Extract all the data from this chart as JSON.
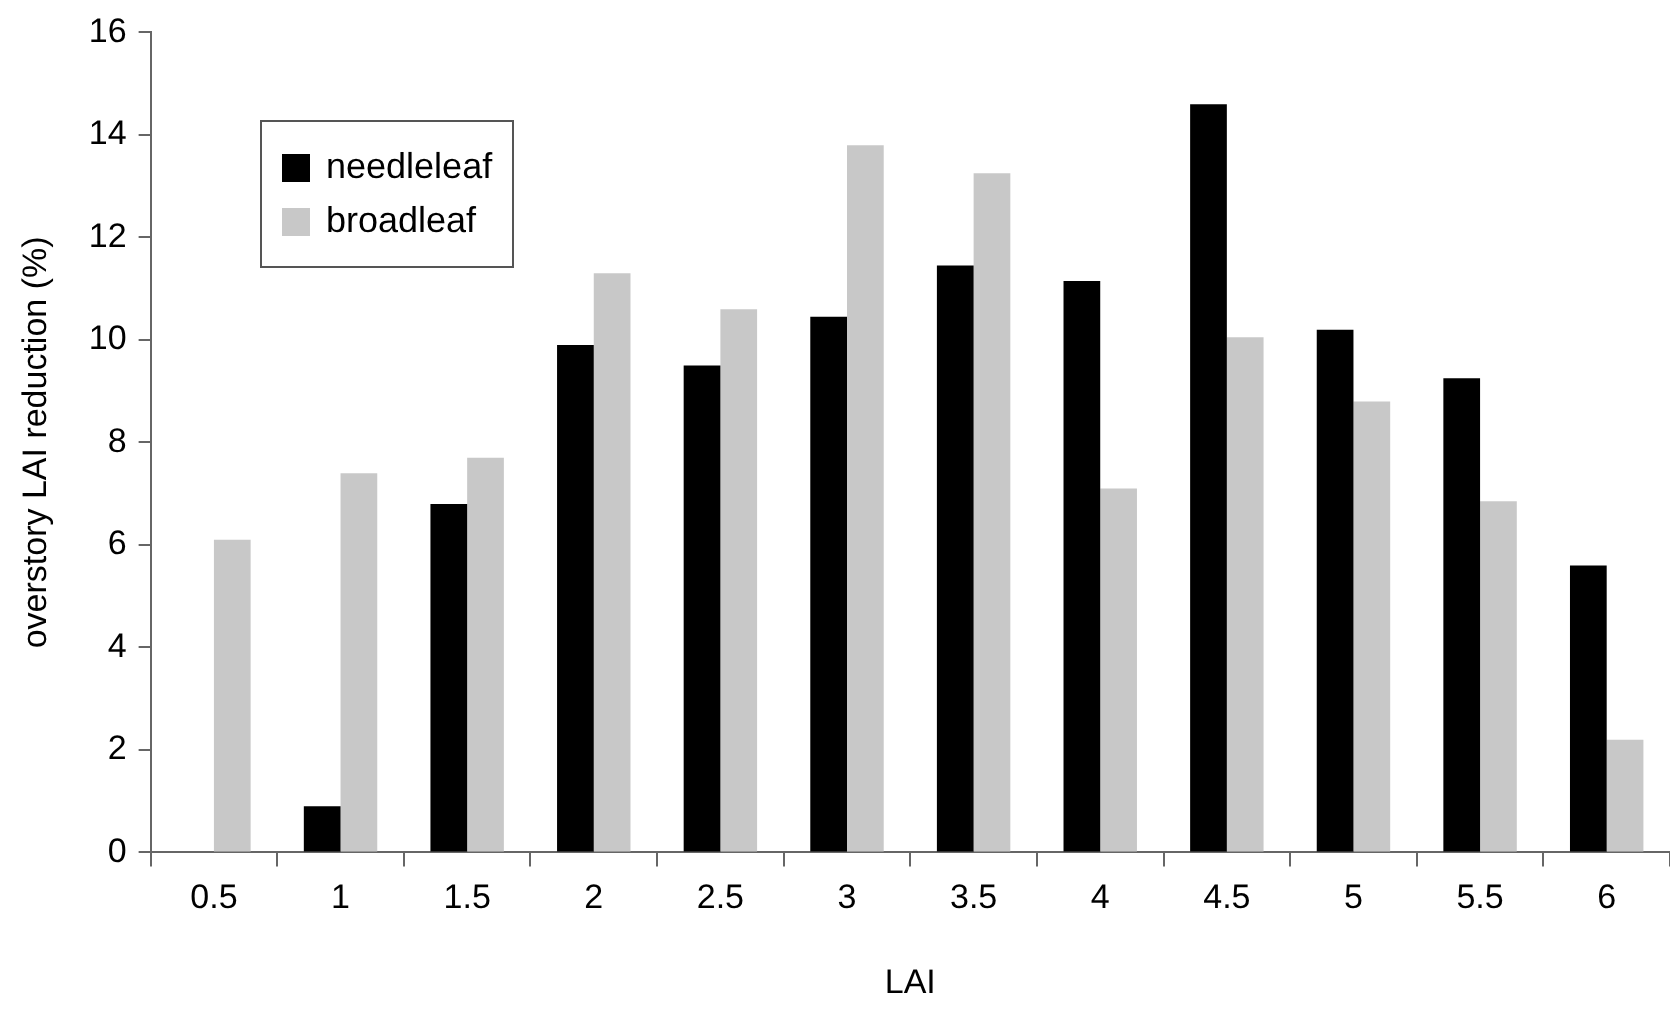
{
  "chart_data": {
    "type": "bar",
    "xlabel": "LAI",
    "ylabel": "overstory LAI reduction (%)",
    "categories": [
      "0.5",
      "1",
      "1.5",
      "2",
      "2.5",
      "3",
      "3.5",
      "4",
      "4.5",
      "5",
      "5.5",
      "6"
    ],
    "series": [
      {
        "name": "needleleaf",
        "color": "#000000",
        "values": [
          null,
          0.9,
          6.8,
          9.9,
          9.5,
          10.45,
          11.45,
          11.15,
          14.6,
          10.2,
          9.25,
          5.6
        ]
      },
      {
        "name": "broadleaf",
        "color": "#c8c8c8",
        "values": [
          6.1,
          7.4,
          7.7,
          11.3,
          10.6,
          13.8,
          13.25,
          7.1,
          10.05,
          8.8,
          6.85,
          2.2
        ]
      }
    ],
    "ylim": [
      0,
      16
    ],
    "yticks": [
      0,
      2,
      4,
      6,
      8,
      10,
      12,
      14,
      16
    ],
    "grid": false,
    "legend": "top left"
  }
}
